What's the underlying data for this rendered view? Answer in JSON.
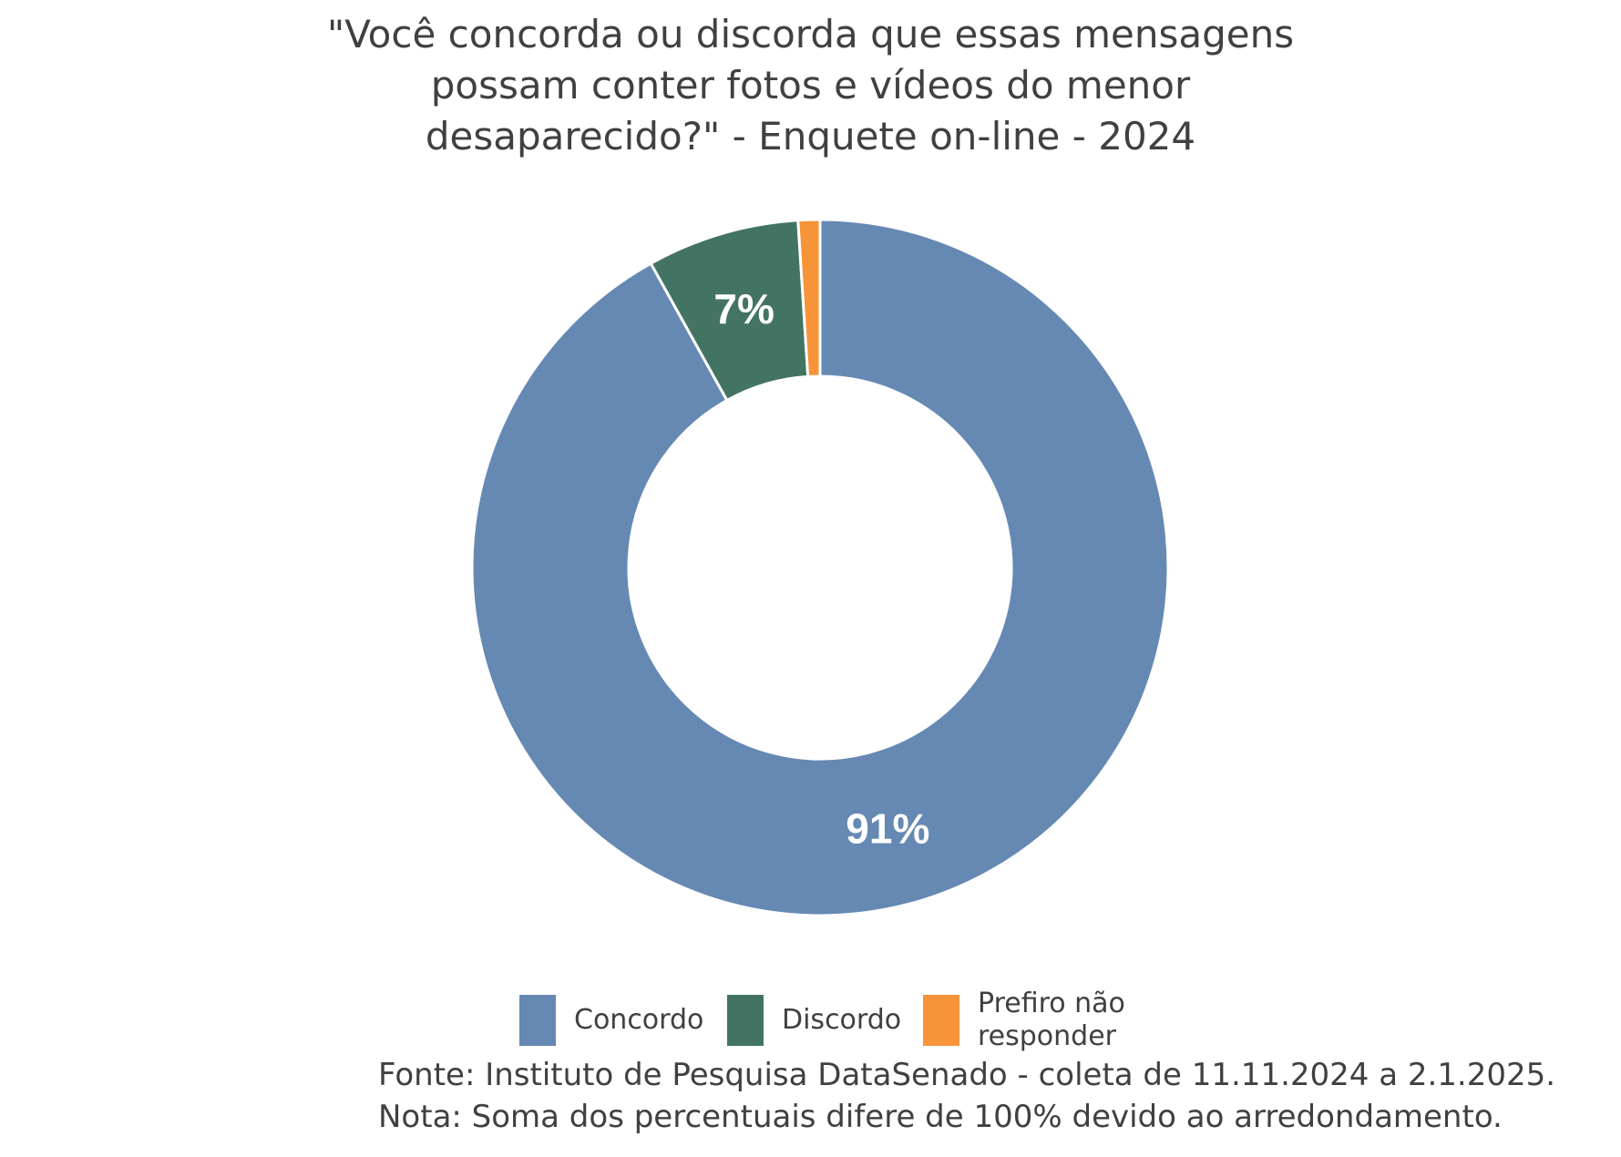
{
  "title_lines": [
    "\"Você concorda ou discorda que essas mensagens",
    "possam conter fotos e vídeos do menor",
    "desaparecido?\" - Enquete on-line - 2024"
  ],
  "chart_data": {
    "type": "pie",
    "variant": "donut",
    "title": "\"Você concorda ou discorda que essas mensagens possam conter fotos e vídeos do menor desaparecido?\" - Enquete on-line - 2024",
    "categories": [
      "Concordo",
      "Discordo",
      "Prefiro não responder"
    ],
    "values": [
      91,
      7,
      1
    ],
    "data_labels": [
      "91%",
      "7%",
      ""
    ],
    "colors": [
      "#6689b3",
      "#437463",
      "#f79339"
    ],
    "legend_position": "bottom",
    "start_angle": "top, clockwise"
  },
  "legend": {
    "items": [
      {
        "label": "Concordo",
        "color": "#6689b3"
      },
      {
        "label": "Discordo",
        "color": "#437463"
      },
      {
        "label": "Prefiro não responder",
        "color": "#f79339"
      }
    ]
  },
  "source": {
    "line1": "Fonte: Instituto de Pesquisa DataSenado - coleta de 11.11.2024 a 2.1.2025.",
    "line2": "Nota: Soma dos percentuais difere de 100% devido ao arredondamento."
  }
}
